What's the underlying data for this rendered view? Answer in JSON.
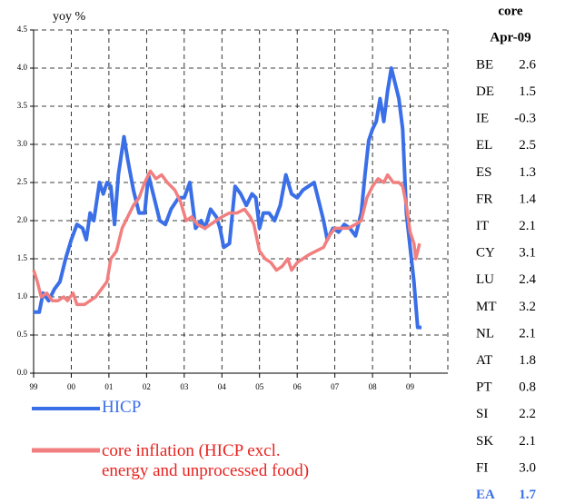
{
  "chart_data": {
    "type": "line",
    "y_label": "yoy %",
    "xlim": [
      1999,
      2010
    ],
    "ylim": [
      0,
      4.5
    ],
    "xticks": [
      {
        "value": 1999,
        "label": "99"
      },
      {
        "value": 2000,
        "label": "00"
      },
      {
        "value": 2001,
        "label": "01"
      },
      {
        "value": 2002,
        "label": "02"
      },
      {
        "value": 2003,
        "label": "03"
      },
      {
        "value": 2004,
        "label": "04"
      },
      {
        "value": 2005,
        "label": "05"
      },
      {
        "value": 2006,
        "label": "06"
      },
      {
        "value": 2007,
        "label": "07"
      },
      {
        "value": 2008,
        "label": "08"
      },
      {
        "value": 2009,
        "label": "09"
      }
    ],
    "yticks": [
      {
        "value": 0,
        "label": "0.0"
      },
      0.5,
      {
        "value": 1,
        "label": "1.0"
      },
      1.5,
      {
        "value": 2,
        "label": "2.0"
      },
      2.5,
      {
        "value": 3,
        "label": "3.0"
      },
      3.5,
      {
        "value": 4,
        "label": "4.0"
      },
      4.5
    ],
    "grid": true,
    "series": [
      {
        "name": "HICP",
        "color": "#3a6fe8",
        "x": [
          1999.0,
          1999.15,
          1999.25,
          1999.4,
          1999.55,
          1999.7,
          1999.85,
          2000.0,
          2000.15,
          2000.3,
          2000.4,
          2000.5,
          2000.6,
          2000.75,
          2000.85,
          2000.95,
          2001.05,
          2001.15,
          2001.25,
          2001.4,
          2001.5,
          2001.65,
          2001.8,
          2001.95,
          2002.05,
          2002.2,
          2002.35,
          2002.5,
          2002.65,
          2002.85,
          2003.0,
          2003.15,
          2003.3,
          2003.45,
          2003.55,
          2003.7,
          2003.85,
          2003.95,
          2004.05,
          2004.2,
          2004.35,
          2004.5,
          2004.65,
          2004.8,
          2004.9,
          2005.0,
          2005.1,
          2005.25,
          2005.4,
          2005.55,
          2005.7,
          2005.85,
          2006.0,
          2006.15,
          2006.3,
          2006.45,
          2006.55,
          2006.7,
          2006.8,
          2006.95,
          2007.1,
          2007.25,
          2007.4,
          2007.55,
          2007.7,
          2007.8,
          2007.9,
          2008.0,
          2008.1,
          2008.2,
          2008.3,
          2008.4,
          2008.5,
          2008.6,
          2008.7,
          2008.8,
          2008.9,
          2009.0,
          2009.1,
          2009.2,
          2009.3
        ],
        "values": [
          0.8,
          0.8,
          1.05,
          0.95,
          1.1,
          1.2,
          1.5,
          1.75,
          1.95,
          1.9,
          1.75,
          2.1,
          2.0,
          2.5,
          2.35,
          2.5,
          2.45,
          1.95,
          2.6,
          3.1,
          2.8,
          2.4,
          2.1,
          2.1,
          2.6,
          2.3,
          2.0,
          1.95,
          2.15,
          2.3,
          2.3,
          2.5,
          1.9,
          2.0,
          1.9,
          2.15,
          2.05,
          1.9,
          1.65,
          1.7,
          2.45,
          2.35,
          2.2,
          2.35,
          2.3,
          1.9,
          2.1,
          2.1,
          2.0,
          2.2,
          2.6,
          2.35,
          2.3,
          2.4,
          2.45,
          2.5,
          2.3,
          2.0,
          1.75,
          1.9,
          1.85,
          1.95,
          1.9,
          1.8,
          2.1,
          2.6,
          3.05,
          3.2,
          3.3,
          3.6,
          3.3,
          3.7,
          4.0,
          3.8,
          3.6,
          3.2,
          2.1,
          1.65,
          1.2,
          0.6,
          0.6
        ]
      },
      {
        "name": "core inflation (HICP excl. energy and unprocessed food)",
        "color": "#f27f7f",
        "x": [
          1999.0,
          1999.1,
          1999.2,
          1999.35,
          1999.5,
          1999.65,
          1999.8,
          1999.9,
          2000.05,
          2000.15,
          2000.35,
          2000.5,
          2000.65,
          2000.8,
          2000.95,
          2001.05,
          2001.2,
          2001.35,
          2001.5,
          2001.65,
          2001.8,
          2001.95,
          2002.1,
          2002.25,
          2002.4,
          2002.55,
          2002.75,
          2002.9,
          2003.05,
          2003.2,
          2003.35,
          2003.55,
          2003.7,
          2003.85,
          2004.0,
          2004.2,
          2004.4,
          2004.6,
          2004.75,
          2004.85,
          2005.0,
          2005.15,
          2005.3,
          2005.45,
          2005.6,
          2005.75,
          2005.85,
          2006.0,
          2006.15,
          2006.3,
          2006.5,
          2006.7,
          2006.85,
          2007.0,
          2007.15,
          2007.35,
          2007.55,
          2007.7,
          2007.85,
          2008.0,
          2008.15,
          2008.3,
          2008.4,
          2008.55,
          2008.7,
          2008.8,
          2008.9,
          2009.0,
          2009.1,
          2009.15,
          2009.25
        ],
        "values": [
          1.35,
          1.2,
          1.0,
          1.05,
          0.95,
          0.95,
          1.0,
          0.95,
          1.05,
          0.9,
          0.9,
          0.95,
          1.0,
          1.1,
          1.2,
          1.5,
          1.6,
          1.9,
          2.05,
          2.2,
          2.3,
          2.5,
          2.65,
          2.55,
          2.6,
          2.5,
          2.4,
          2.25,
          2.0,
          2.05,
          1.95,
          1.9,
          1.95,
          2.0,
          2.05,
          2.1,
          2.1,
          2.15,
          2.05,
          1.95,
          1.6,
          1.5,
          1.45,
          1.35,
          1.4,
          1.5,
          1.35,
          1.45,
          1.5,
          1.55,
          1.6,
          1.65,
          1.8,
          1.9,
          1.9,
          1.9,
          1.95,
          2.0,
          2.3,
          2.45,
          2.55,
          2.5,
          2.6,
          2.5,
          2.5,
          2.45,
          2.2,
          1.85,
          1.7,
          1.5,
          1.7
        ]
      }
    ]
  },
  "table": {
    "header": [
      "core",
      "Apr-09"
    ],
    "rows": [
      [
        "BE",
        "2.6"
      ],
      [
        "DE",
        "1.5"
      ],
      [
        "IE",
        "-0.3"
      ],
      [
        "EL",
        "2.5"
      ],
      [
        "ES",
        "1.3"
      ],
      [
        "FR",
        "1.4"
      ],
      [
        "IT",
        "2.1"
      ],
      [
        "CY",
        "3.1"
      ],
      [
        "LU",
        "2.4"
      ],
      [
        "MT",
        "3.2"
      ],
      [
        "NL",
        "2.1"
      ],
      [
        "AT",
        "1.8"
      ],
      [
        "PT",
        "0.8"
      ],
      [
        "SI",
        "2.2"
      ],
      [
        "SK",
        "2.1"
      ],
      [
        "FI",
        "3.0"
      ],
      [
        "EA",
        "1.7"
      ]
    ]
  }
}
